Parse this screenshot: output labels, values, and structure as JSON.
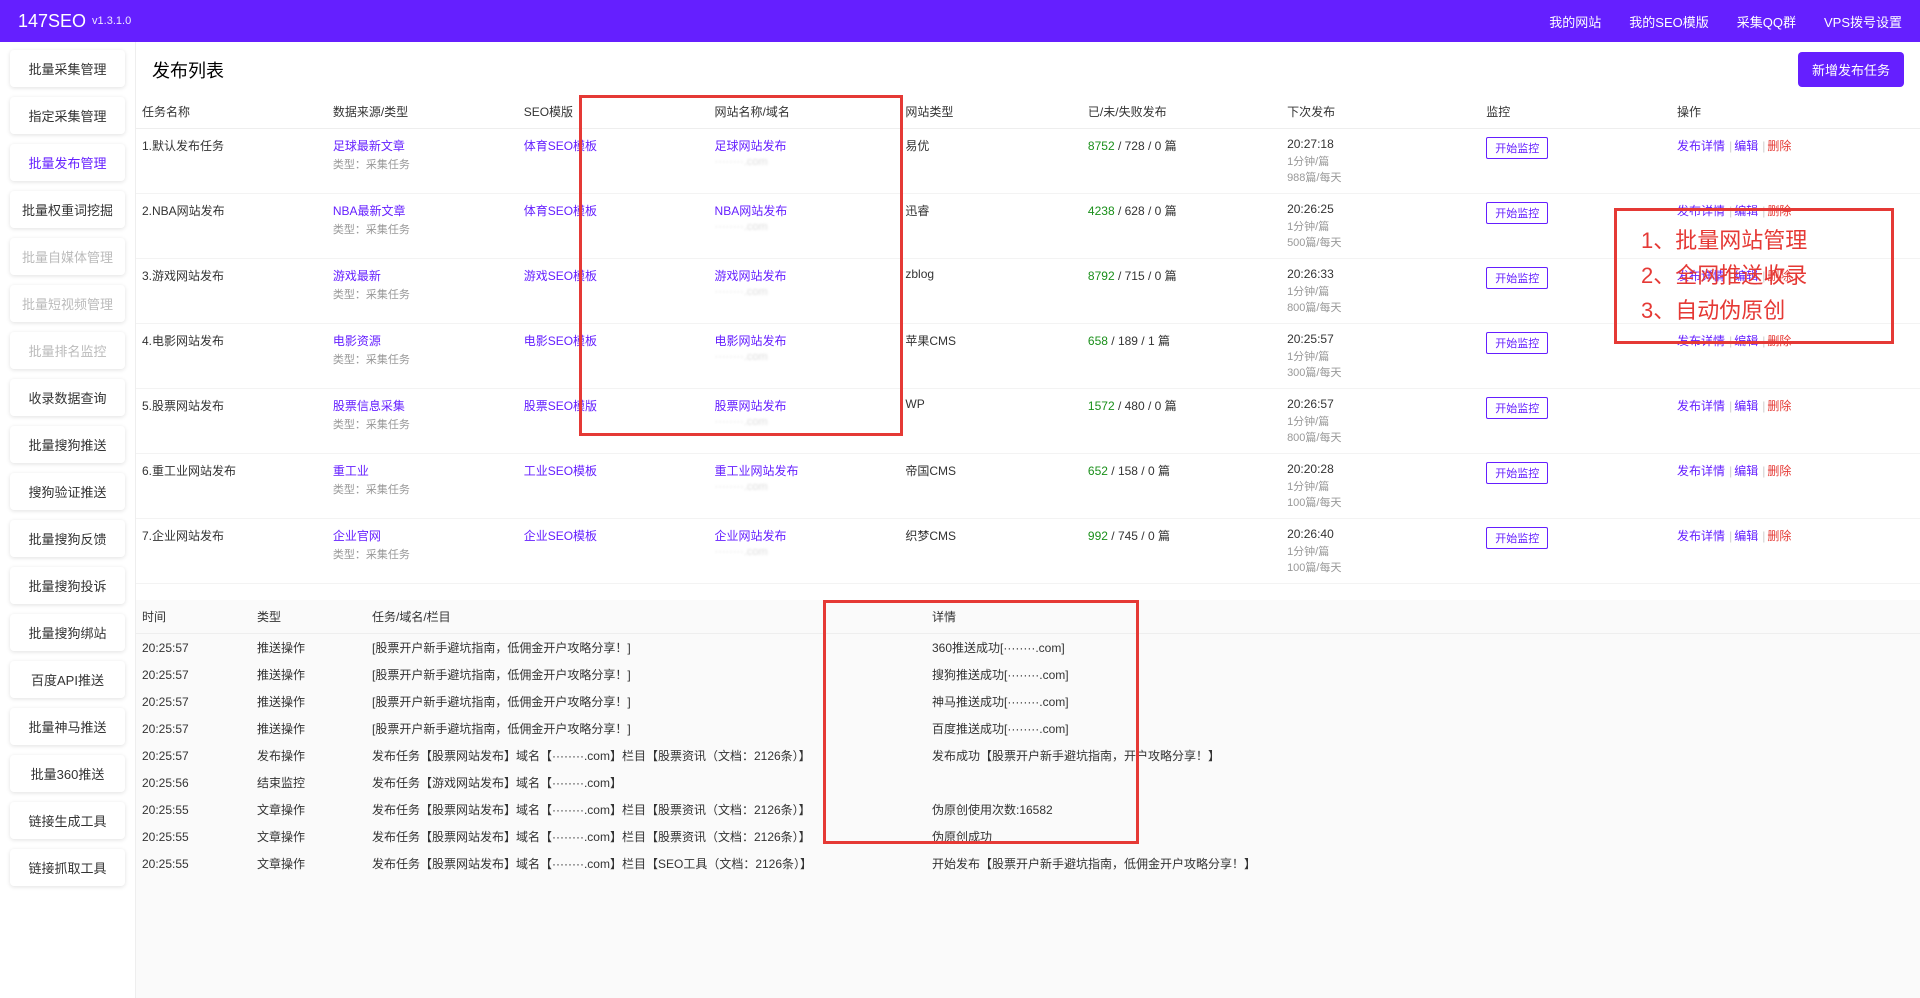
{
  "header": {
    "brand": "147SEO",
    "version": "v1.3.1.0",
    "nav": [
      "我的网站",
      "我的SEO模版",
      "采集QQ群",
      "VPS拨号设置"
    ]
  },
  "sidebar": {
    "items": [
      {
        "label": "批量采集管理",
        "state": ""
      },
      {
        "label": "指定采集管理",
        "state": ""
      },
      {
        "label": "批量发布管理",
        "state": "active"
      },
      {
        "label": "批量权重词挖掘",
        "state": ""
      },
      {
        "label": "批量自媒体管理",
        "state": "disabled"
      },
      {
        "label": "批量短视频管理",
        "state": "disabled"
      },
      {
        "label": "批量排名监控",
        "state": "disabled"
      },
      {
        "label": "收录数据查询",
        "state": ""
      },
      {
        "label": "批量搜狗推送",
        "state": ""
      },
      {
        "label": "搜狗验证推送",
        "state": ""
      },
      {
        "label": "批量搜狗反馈",
        "state": ""
      },
      {
        "label": "批量搜狗投诉",
        "state": ""
      },
      {
        "label": "批量搜狗绑站",
        "state": ""
      },
      {
        "label": "百度API推送",
        "state": ""
      },
      {
        "label": "批量神马推送",
        "state": ""
      },
      {
        "label": "批量360推送",
        "state": ""
      },
      {
        "label": "链接生成工具",
        "state": ""
      },
      {
        "label": "链接抓取工具",
        "state": ""
      }
    ]
  },
  "pubList": {
    "title": "发布列表",
    "addBtn": "新增发布任务",
    "headers": [
      "任务名称",
      "数据来源/类型",
      "SEO模版",
      "网站名称/域名",
      "网站类型",
      "已/未/失败发布",
      "下次发布",
      "监控",
      "操作"
    ],
    "monitorLabel": "开始监控",
    "op": {
      "detail": "发布详情",
      "edit": "编辑",
      "del": "删除"
    },
    "typeSub": "类型：采集任务",
    "rows": [
      {
        "name": "1.默认发布任务",
        "src": "足球最新文章",
        "tpl": "体育SEO模板",
        "site": "足球网站发布",
        "domain": "········.com",
        "type": "易优",
        "c1": "8752",
        "c2": " / 728 / 0 篇",
        "time": "20:27:18",
        "sub": "1分钟/篇\n988篇/每天"
      },
      {
        "name": "2.NBA网站发布",
        "src": "NBA最新文章",
        "tpl": "体育SEO模板",
        "site": "NBA网站发布",
        "domain": "········.com",
        "type": "迅睿",
        "c1": "4238",
        "c2": " / 628 / 0 篇",
        "time": "20:26:25",
        "sub": "1分钟/篇\n500篇/每天"
      },
      {
        "name": "3.游戏网站发布",
        "src": "游戏最新",
        "tpl": "游戏SEO模板",
        "site": "游戏网站发布",
        "domain": "········.com",
        "type": "zblog",
        "c1": "8792",
        "c2": " / 715 / 0 篇",
        "time": "20:26:33",
        "sub": "1分钟/篇\n800篇/每天"
      },
      {
        "name": "4.电影网站发布",
        "src": "电影资源",
        "tpl": "电影SEO模板",
        "site": "电影网站发布",
        "domain": "········.com",
        "type": "苹果CMS",
        "c1": "658",
        "c2": " / 189 / 1 篇",
        "time": "20:25:57",
        "sub": "1分钟/篇\n300篇/每天"
      },
      {
        "name": "5.股票网站发布",
        "src": "股票信息采集",
        "tpl": "股票SEO模版",
        "site": "股票网站发布",
        "domain": "········.com",
        "type": "WP",
        "c1": "1572",
        "c2": " / 480 / 0 篇",
        "time": "20:26:57",
        "sub": "1分钟/篇\n800篇/每天"
      },
      {
        "name": "6.重工业网站发布",
        "src": "重工业",
        "tpl": "工业SEO模板",
        "site": "重工业网站发布",
        "domain": "········.com",
        "type": "帝国CMS",
        "c1": "652",
        "c2": " / 158 / 0 篇",
        "time": "20:20:28",
        "sub": "1分钟/篇\n100篇/每天"
      },
      {
        "name": "7.企业网站发布",
        "src": "企业官网",
        "tpl": "企业SEO模板",
        "site": "企业网站发布",
        "domain": "········.com",
        "type": "织梦CMS",
        "c1": "992",
        "c2": " / 745 / 0 篇",
        "time": "20:26:40",
        "sub": "1分钟/篇\n100篇/每天"
      }
    ]
  },
  "logs": {
    "headers": [
      "时间",
      "类型",
      "任务/域名/栏目",
      "详情"
    ],
    "rows": [
      {
        "time": "20:25:57",
        "type": "推送操作",
        "task": "[股票开户新手避坑指南，低佣金开户攻略分享！]",
        "det": "360推送成功[········.com]",
        "g": true
      },
      {
        "time": "20:25:57",
        "type": "推送操作",
        "task": "[股票开户新手避坑指南，低佣金开户攻略分享！]",
        "det": "搜狗推送成功[········.com]",
        "g": true
      },
      {
        "time": "20:25:57",
        "type": "推送操作",
        "task": "[股票开户新手避坑指南，低佣金开户攻略分享！]",
        "det": "神马推送成功[········.com]",
        "g": true
      },
      {
        "time": "20:25:57",
        "type": "推送操作",
        "task": "[股票开户新手避坑指南，低佣金开户攻略分享！]",
        "det": "百度推送成功[········.com]",
        "g": true
      },
      {
        "time": "20:25:57",
        "type": "发布操作",
        "task": "发布任务【股票网站发布】域名【········.com】栏目【股票资讯（文档：2126条）】",
        "det": "发布成功【股票开户新手避坑指南，开户攻略分享！】",
        "g": true
      },
      {
        "time": "20:25:56",
        "type": "结束监控",
        "task": "发布任务【游戏网站发布】域名【········.com】",
        "det": "",
        "g": false
      },
      {
        "time": "20:25:55",
        "type": "文章操作",
        "task": "发布任务【股票网站发布】域名【········.com】栏目【股票资讯（文档：2126条）】",
        "det": "伪原创使用次数:16582",
        "g": false
      },
      {
        "time": "20:25:55",
        "type": "文章操作",
        "task": "发布任务【股票网站发布】域名【········.com】栏目【股票资讯（文档：2126条）】",
        "det": "伪原创成功",
        "g": true,
        "dg": true
      },
      {
        "time": "20:25:55",
        "type": "文章操作",
        "task": "发布任务【股票网站发布】域名【········.com】栏目【SEO工具（文档：2126条）】",
        "det": "开始发布【股票开户新手避坑指南，低佣金开户攻略分享！】",
        "g": true,
        "dg": true
      }
    ]
  },
  "annotation": {
    "l1": "1、批量网站管理",
    "l2": "2、全网推送收录",
    "l3": "3、自动伪原创"
  }
}
